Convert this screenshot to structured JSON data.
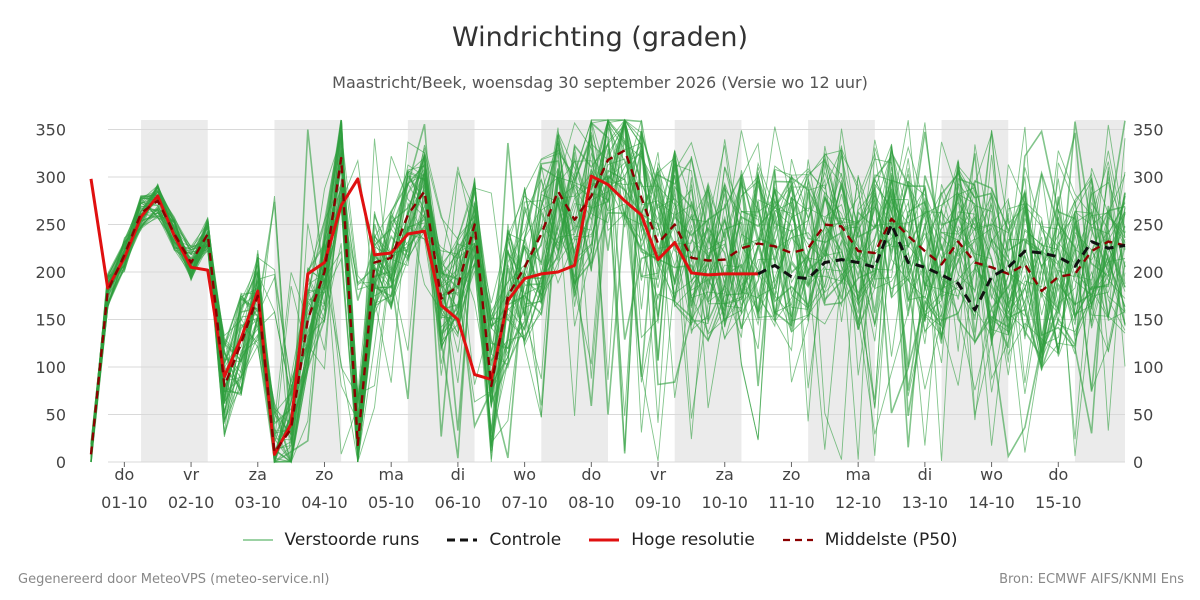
{
  "title": "Windrichting (graden)",
  "subtitle": "Maastricht/Beek, woensdag 30 september 2026 (Versie wo 12 uur)",
  "footer_left": "Gegenereerd door MeteoVPS (meteo-service.nl)",
  "footer_right": "Bron: ECMWF AIFS/KNMI Ens",
  "legend": [
    {
      "label": "Verstoorde runs",
      "color": "#2e9e3e",
      "style": "thin"
    },
    {
      "label": "Controle",
      "color": "#111111",
      "style": "dashed"
    },
    {
      "label": "Hoge resolutie",
      "color": "#e01010",
      "style": "solid"
    },
    {
      "label": "Middelste (P50)",
      "color": "#8b0000",
      "style": "dashed"
    }
  ],
  "chart_data": {
    "type": "line",
    "title": "Windrichting (graden)",
    "ylim": [
      0,
      360
    ],
    "yticks": [
      0,
      50,
      100,
      150,
      200,
      250,
      300,
      350
    ],
    "xlim": [
      0,
      15.5
    ],
    "x_unit": "days since 2026-09-30 12:00",
    "x_ticks": [
      {
        "day": "do",
        "date": "01-10"
      },
      {
        "day": "vr",
        "date": "02-10"
      },
      {
        "day": "za",
        "date": "03-10"
      },
      {
        "day": "zo",
        "date": "04-10"
      },
      {
        "day": "ma",
        "date": "05-10"
      },
      {
        "day": "di",
        "date": "06-10"
      },
      {
        "day": "wo",
        "date": "07-10"
      },
      {
        "day": "do",
        "date": "08-10"
      },
      {
        "day": "vr",
        "date": "09-10"
      },
      {
        "day": "za",
        "date": "10-10"
      },
      {
        "day": "zo",
        "date": "11-10"
      },
      {
        "day": "ma",
        "date": "12-10"
      },
      {
        "day": "di",
        "date": "13-10"
      },
      {
        "day": "wo",
        "date": "14-10"
      },
      {
        "day": "do",
        "date": "15-10"
      }
    ],
    "weekend_shading": [
      [
        0.75,
        1.75
      ],
      [
        2.75,
        3.75
      ],
      [
        4.75,
        5.75
      ],
      [
        6.75,
        7.75
      ],
      [
        8.75,
        9.75
      ],
      [
        10.75,
        11.75
      ],
      [
        12.75,
        13.75
      ],
      [
        14.75,
        15.5
      ]
    ],
    "grid": true,
    "legend_position": "bottom",
    "series": [
      {
        "name": "Hoge resolutie",
        "color": "#e01010",
        "x": [
          0,
          0.25,
          0.5,
          0.75,
          1,
          1.25,
          1.5,
          1.75,
          2,
          2.25,
          2.5,
          2.75,
          3,
          3.25,
          3.5,
          3.75,
          4,
          4.25,
          4.5,
          4.75,
          5,
          5.25,
          5.5,
          5.75,
          6,
          6.25,
          6.5,
          6.75,
          7,
          7.25,
          7.5,
          7.75,
          8,
          8.25,
          8.5,
          8.75,
          9,
          9.25,
          9.5,
          9.75,
          10
        ],
        "y": [
          298,
          183,
          215,
          258,
          280,
          238,
          205,
          202,
          90,
          130,
          180,
          8,
          40,
          198,
          210,
          270,
          298,
          218,
          220,
          240,
          243,
          165,
          150,
          92,
          87,
          170,
          193,
          198,
          200,
          207,
          301,
          292,
          275,
          260,
          213,
          231,
          199,
          197,
          198,
          198,
          198
        ]
      },
      {
        "name": "Controle",
        "color": "#111111",
        "x": [
          10,
          10.25,
          10.5,
          10.75,
          11,
          11.25,
          11.5,
          11.75,
          12,
          12.25,
          12.5,
          12.75,
          13,
          13.25,
          13.5,
          13.75,
          14,
          14.25,
          14.5,
          14.75,
          15,
          15.25,
          15.5
        ],
        "y": [
          198,
          207,
          195,
          193,
          210,
          213,
          210,
          205,
          250,
          210,
          205,
          197,
          188,
          160,
          195,
          205,
          222,
          220,
          216,
          206,
          232,
          225,
          228
        ]
      },
      {
        "name": "Middelste (P50)",
        "color": "#8b0000",
        "x": [
          0,
          0.25,
          0.5,
          0.75,
          1,
          1.25,
          1.5,
          1.75,
          2,
          2.25,
          2.5,
          2.75,
          3,
          3.25,
          3.5,
          3.75,
          4,
          4.25,
          4.5,
          4.75,
          5,
          5.25,
          5.5,
          5.75,
          6,
          6.25,
          6.5,
          6.75,
          7,
          7.25,
          7.5,
          7.75,
          8,
          8.25,
          8.5,
          8.75,
          9,
          9.25,
          9.5,
          9.75,
          10,
          10.25,
          10.5,
          10.75,
          11,
          11.25,
          11.5,
          11.75,
          12,
          12.25,
          12.5,
          12.75,
          13,
          13.25,
          13.5,
          13.75,
          14,
          14.25,
          14.5,
          14.75,
          15,
          15.25,
          15.5
        ],
        "y": [
          8,
          180,
          218,
          262,
          275,
          240,
          210,
          240,
          80,
          125,
          175,
          10,
          35,
          150,
          200,
          320,
          18,
          210,
          215,
          260,
          285,
          172,
          185,
          250,
          80,
          175,
          205,
          240,
          285,
          255,
          280,
          318,
          328,
          278,
          230,
          250,
          215,
          212,
          213,
          225,
          230,
          227,
          220,
          225,
          250,
          248,
          222,
          220,
          256,
          238,
          222,
          208,
          232,
          210,
          205,
          198,
          208,
          180,
          195,
          198,
          222,
          232,
          228
        ]
      }
    ],
    "ensemble": {
      "name": "Verstoorde runs",
      "members": 50,
      "x_step": 0.25,
      "x_end": 15.5,
      "min": 0,
      "max": 360
    }
  }
}
